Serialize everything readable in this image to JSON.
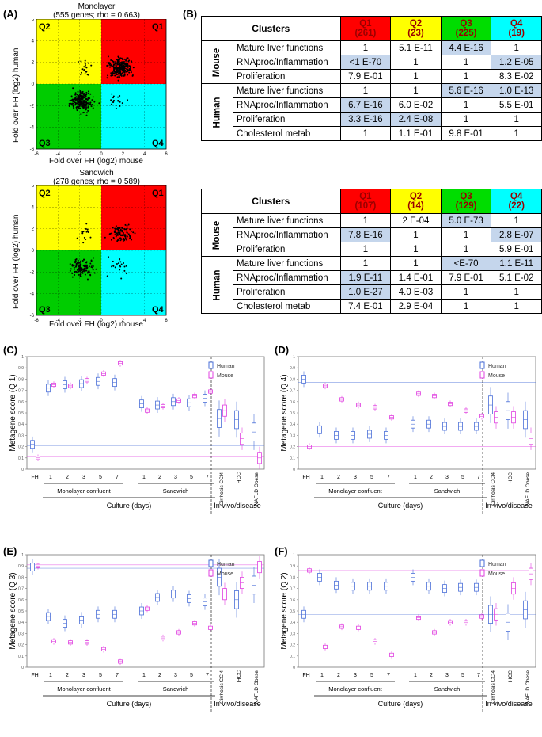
{
  "panels": {
    "a": "(A)",
    "b": "(B)",
    "c": "(C)",
    "d": "(D)",
    "e": "(E)",
    "f": "(F)"
  },
  "scatter": [
    {
      "title": "Monolayer",
      "subtitle": "(555 genes; rho = 0.663)",
      "xlabel": "Fold over FH (log2) mouse",
      "ylabel": "Fold over FH (log2) human",
      "quadrants": {
        "q1": "Q1",
        "q2": "Q2",
        "q3": "Q3",
        "q4": "Q4"
      },
      "ticks": [
        "-6",
        "-4",
        "-2",
        "0",
        "2",
        "4",
        "6"
      ],
      "colors": {
        "q1": "#ff0000",
        "q2": "#ffff00",
        "q3": "#00cc00",
        "q4": "#00ffff"
      }
    },
    {
      "title": "Sandwich",
      "subtitle": "(278 genes; rho = 0.589)",
      "xlabel": "Fold over FH (log2) mouse",
      "ylabel": "Fold over FH (log2) human",
      "quadrants": {
        "q1": "Q1",
        "q2": "Q2",
        "q3": "Q3",
        "q4": "Q4"
      },
      "ticks": [
        "-6",
        "-4",
        "-2",
        "0",
        "2",
        "4",
        "6"
      ],
      "colors": {
        "q1": "#ff0000",
        "q2": "#ffff00",
        "q3": "#00cc00",
        "q4": "#00ffff"
      }
    }
  ],
  "tables": [
    {
      "header": "Clusters",
      "q": [
        {
          "name": "Q1",
          "n": "(261)"
        },
        {
          "name": "Q2",
          "n": "(23)"
        },
        {
          "name": "Q3",
          "n": "(225)"
        },
        {
          "name": "Q4",
          "n": "(19)"
        }
      ],
      "groups": [
        {
          "name": "Mouse",
          "rows": [
            {
              "label": "Mature liver functions",
              "cells": [
                "1",
                "5.1 E-11",
                "4.4 E-16",
                "1"
              ],
              "hl": [
                false,
                false,
                true,
                false
              ]
            },
            {
              "label": "RNAproc/Inflammation",
              "cells": [
                "<1 E-70",
                "1",
                "1",
                "1.2 E-05"
              ],
              "hl": [
                true,
                false,
                false,
                true
              ]
            },
            {
              "label": "Proliferation",
              "cells": [
                "7.9 E-01",
                "1",
                "1",
                "8.3 E-02"
              ],
              "hl": [
                false,
                false,
                false,
                false
              ]
            }
          ]
        },
        {
          "name": "Human",
          "rows": [
            {
              "label": "Mature liver functions",
              "cells": [
                "1",
                "1",
                "5.6 E-16",
                "1.0 E-13"
              ],
              "hl": [
                false,
                false,
                true,
                true
              ]
            },
            {
              "label": "RNAproc/Inflammation",
              "cells": [
                "6.7 E-16",
                "6.0 E-02",
                "1",
                "5.5 E-01"
              ],
              "hl": [
                true,
                false,
                false,
                false
              ]
            },
            {
              "label": "Proliferation",
              "cells": [
                "3.3 E-16",
                "2.4 E-08",
                "1",
                "1"
              ],
              "hl": [
                true,
                true,
                false,
                false
              ]
            },
            {
              "label": "Cholesterol metab",
              "cells": [
                "1",
                "1.1 E-01",
                "9.8 E-01",
                "1"
              ],
              "hl": [
                false,
                false,
                false,
                false
              ]
            }
          ]
        }
      ]
    },
    {
      "header": "Clusters",
      "q": [
        {
          "name": "Q1",
          "n": "(107)"
        },
        {
          "name": "Q2",
          "n": "(14)"
        },
        {
          "name": "Q3",
          "n": "(129)"
        },
        {
          "name": "Q4",
          "n": "(22)"
        }
      ],
      "groups": [
        {
          "name": "Mouse",
          "rows": [
            {
              "label": "Mature liver functions",
              "cells": [
                "1",
                "2 E-04",
                "5.0 E-73",
                "1"
              ],
              "hl": [
                false,
                false,
                true,
                false
              ]
            },
            {
              "label": "RNAproc/Inflammation",
              "cells": [
                "7.8 E-16",
                "1",
                "1",
                "2.8 E-07"
              ],
              "hl": [
                true,
                false,
                false,
                true
              ]
            },
            {
              "label": "Proliferation",
              "cells": [
                "1",
                "1",
                "1",
                "5.9 E-01"
              ],
              "hl": [
                false,
                false,
                false,
                false
              ]
            }
          ]
        },
        {
          "name": "Human",
          "rows": [
            {
              "label": "Mature liver functions",
              "cells": [
                "1",
                "1",
                "<E-70",
                "1.1 E-11"
              ],
              "hl": [
                false,
                false,
                true,
                true
              ]
            },
            {
              "label": "RNAproc/Inflammation",
              "cells": [
                "1.9 E-11",
                "1.4 E-01",
                "7.9 E-01",
                "5.1 E-02"
              ],
              "hl": [
                true,
                false,
                false,
                false
              ]
            },
            {
              "label": "Proliferation",
              "cells": [
                "1.0 E-27",
                "4.0 E-03",
                "1",
                "1"
              ],
              "hl": [
                true,
                false,
                false,
                false
              ]
            },
            {
              "label": "Cholesterol metab",
              "cells": [
                "7.4 E-01",
                "2.9 E-04",
                "1",
                "1"
              ],
              "hl": [
                false,
                false,
                false,
                false
              ]
            }
          ]
        }
      ]
    }
  ],
  "boxplot_common": {
    "days": [
      "1",
      "2",
      "3",
      "5",
      "7"
    ],
    "fh": "FH",
    "invivo": [
      "Cirrhosis CCl4",
      "HCC",
      "NAFLD Obese"
    ],
    "group_labels": {
      "monolayer": "Monolayer confluent",
      "sandwich": "Sandwich",
      "culture": "Culture (days)",
      "invivo": "In vivo/disease"
    },
    "legend": {
      "human": "Human",
      "mouse": "Mouse"
    },
    "colors": {
      "human": "#4a6fd8",
      "mouse": "#e040e0"
    },
    "yticks": [
      "0",
      "0.1",
      "0.2",
      "0.3",
      "0.4",
      "0.5",
      "0.6",
      "0.7",
      "0.8",
      "0.9",
      "1"
    ]
  },
  "chart_data": [
    {
      "type": "box",
      "panel": "(C)",
      "ylabel": "Metagene score (Q 1)",
      "ylim": [
        0,
        1
      ],
      "categories": [
        "FH",
        "M1",
        "M2",
        "M3",
        "M5",
        "M7",
        "S1",
        "S2",
        "S3",
        "S5",
        "S7",
        "Cirrhosis CCl4",
        "HCC",
        "NAFLD Obese"
      ],
      "series": [
        {
          "name": "Human",
          "ref": 0.21,
          "values": [
            0.22,
            0.72,
            0.75,
            0.76,
            0.78,
            0.77,
            0.58,
            0.57,
            0.6,
            0.59,
            0.63,
            0.45,
            0.44,
            0.33
          ]
        },
        {
          "name": "Mouse",
          "ref": 0.11,
          "values": [
            0.1,
            0.75,
            0.74,
            0.79,
            0.85,
            0.94,
            0.52,
            0.56,
            0.61,
            0.65,
            0.69,
            0.52,
            0.27,
            0.1
          ]
        }
      ]
    },
    {
      "type": "box",
      "panel": "(D)",
      "ylabel": "Metagene score (Q 4)",
      "ylim": [
        0,
        1
      ],
      "categories": [
        "FH",
        "M1",
        "M2",
        "M3",
        "M5",
        "M7",
        "S1",
        "S2",
        "S3",
        "S5",
        "S7",
        "Cirrhosis CCl4",
        "HCC",
        "NAFLD Obese"
      ],
      "series": [
        {
          "name": "Human",
          "ref": 0.77,
          "values": [
            0.8,
            0.35,
            0.3,
            0.3,
            0.31,
            0.3,
            0.4,
            0.4,
            0.38,
            0.38,
            0.38,
            0.57,
            0.52,
            0.44
          ]
        },
        {
          "name": "Mouse",
          "ref": 0.2,
          "values": [
            0.2,
            0.74,
            0.62,
            0.57,
            0.55,
            0.46,
            0.67,
            0.65,
            0.58,
            0.52,
            0.47,
            0.46,
            0.46,
            0.27
          ]
        }
      ]
    },
    {
      "type": "box",
      "panel": "(E)",
      "ylabel": "Metagene score (Q 3)",
      "ylim": [
        0,
        1
      ],
      "categories": [
        "FH",
        "M1",
        "M2",
        "M3",
        "M5",
        "M7",
        "S1",
        "S2",
        "S3",
        "S5",
        "S7",
        "Cirrhosis CCl4",
        "HCC",
        "NAFLD Obese"
      ],
      "series": [
        {
          "name": "Human",
          "ref": 0.88,
          "values": [
            0.89,
            0.45,
            0.39,
            0.42,
            0.47,
            0.47,
            0.5,
            0.62,
            0.65,
            0.61,
            0.58,
            0.8,
            0.6,
            0.73
          ]
        },
        {
          "name": "Mouse",
          "ref": 0.91,
          "values": [
            0.9,
            0.23,
            0.22,
            0.22,
            0.16,
            0.05,
            0.52,
            0.26,
            0.31,
            0.39,
            0.35,
            0.65,
            0.75,
            0.89
          ]
        }
      ]
    },
    {
      "type": "box",
      "panel": "(F)",
      "ylabel": "Metagene score (Q 2)",
      "ylim": [
        0,
        1
      ],
      "categories": [
        "FH",
        "M1",
        "M2",
        "M3",
        "M5",
        "M7",
        "S1",
        "S2",
        "S3",
        "S5",
        "S7",
        "Cirrhosis CCl4",
        "HCC",
        "NAFLD Obese"
      ],
      "series": [
        {
          "name": "Human",
          "ref": 0.47,
          "values": [
            0.47,
            0.8,
            0.73,
            0.72,
            0.72,
            0.72,
            0.8,
            0.72,
            0.7,
            0.71,
            0.71,
            0.47,
            0.4,
            0.51
          ]
        },
        {
          "name": "Mouse",
          "ref": 0.86,
          "values": [
            0.86,
            0.18,
            0.36,
            0.35,
            0.23,
            0.11,
            0.44,
            0.31,
            0.4,
            0.4,
            0.45,
            0.47,
            0.7,
            0.83
          ]
        }
      ]
    }
  ]
}
